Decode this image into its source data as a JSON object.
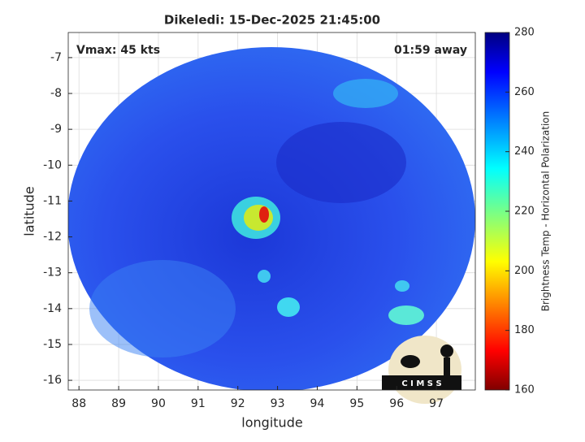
{
  "chart_data": {
    "type": "heatmap",
    "title": "Dikeledi: 15-Dec-2025 21:45:00",
    "annotations": [
      "Vmax: 45 kts",
      "01:59 away"
    ],
    "xlabel": "longitude",
    "ylabel": "latitude",
    "xlim": [
      87.73,
      97.98
    ],
    "xticks": [
      88,
      89,
      90,
      91,
      92,
      93,
      94,
      95,
      96,
      97
    ],
    "ylim": [
      -16.27,
      -6.3
    ],
    "yticks": [
      -16,
      -15,
      -14,
      -13,
      -12,
      -11,
      -10,
      -9,
      -8,
      -7
    ],
    "grid": true,
    "colorbar": {
      "label": "Brightness Temp - Horizontal Polarization",
      "colormap": "jet",
      "lim": [
        160,
        280
      ],
      "ticks": [
        160,
        180,
        200,
        220,
        240,
        260,
        280
      ]
    },
    "logo_text": "C I M S S"
  }
}
